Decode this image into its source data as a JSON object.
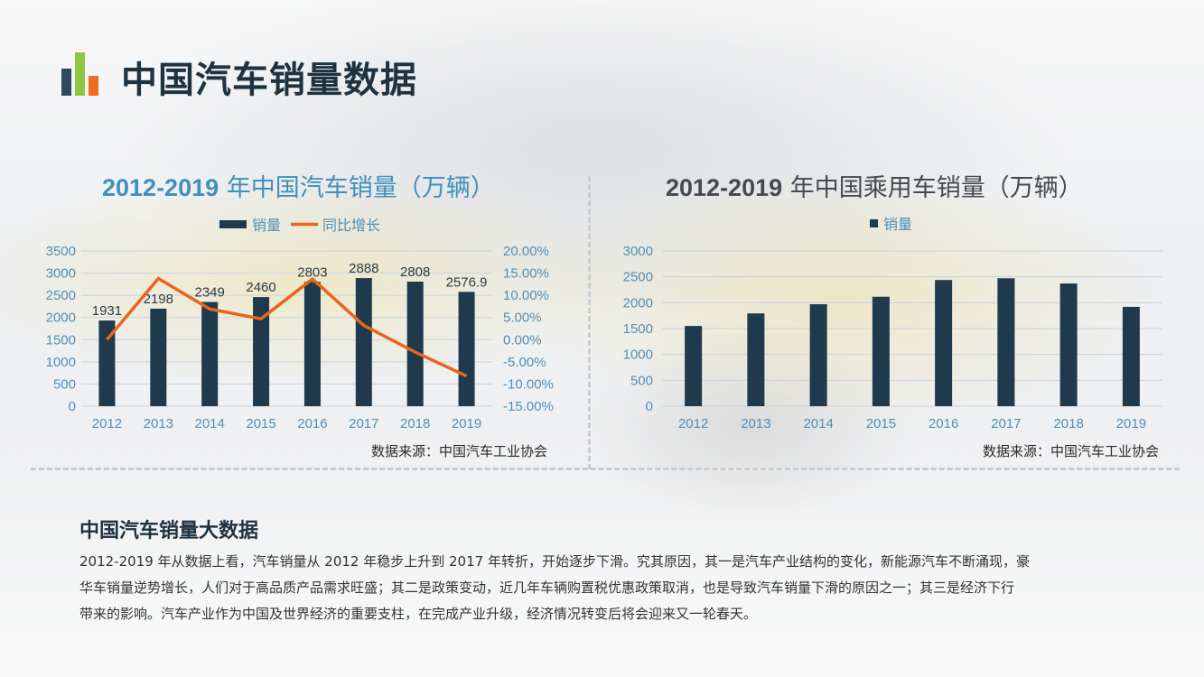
{
  "page": {
    "title": "中国汽车销量数据",
    "accent_colors": [
      "#2b4a5c",
      "#8dc63f",
      "#ef6c21"
    ]
  },
  "chart_data": [
    {
      "type": "bar+line",
      "title_bold": "2012-2019",
      "title_rest": " 年中国汽车销量（万辆）",
      "categories": [
        "2012",
        "2013",
        "2014",
        "2015",
        "2016",
        "2017",
        "2018",
        "2019"
      ],
      "series": [
        {
          "name": "销量",
          "type": "bar",
          "axis": "left",
          "color": "#1e3a4c",
          "values": [
            1931,
            2198,
            2349,
            2460,
            2803,
            2888,
            2808,
            2576.9
          ],
          "labels": [
            "1931",
            "2198",
            "2349",
            "2460",
            "2803",
            "2888",
            "2808",
            "2576.9"
          ]
        },
        {
          "name": "同比增长",
          "type": "line",
          "axis": "right",
          "color": "#e8651c",
          "values": [
            0.0,
            13.8,
            6.9,
            4.7,
            13.7,
            3.2,
            -2.8,
            -8.2
          ]
        }
      ],
      "ylim_left": [
        0,
        3500
      ],
      "yticks_left": [
        0,
        500,
        1000,
        1500,
        2000,
        2500,
        3000,
        3500
      ],
      "ylim_right": [
        -15,
        20
      ],
      "yticks_right": [
        "-15.00%",
        "-10.00%",
        "-5.00%",
        "0.00%",
        "5.00%",
        "10.00%",
        "15.00%",
        "20.00%"
      ],
      "legend": "top-center",
      "source": "数据来源：中国汽车工业协会"
    },
    {
      "type": "bar",
      "title_bold": "2012-2019",
      "title_rest": " 年中国乘用车销量（万辆）",
      "categories": [
        "2012",
        "2013",
        "2014",
        "2015",
        "2016",
        "2017",
        "2018",
        "2019"
      ],
      "series": [
        {
          "name": "销量",
          "type": "bar",
          "color": "#1e3a4c",
          "values": [
            1550,
            1793,
            1970,
            2115,
            2438,
            2472,
            2371,
            1920
          ]
        }
      ],
      "ylim": [
        0,
        3000
      ],
      "yticks": [
        0,
        500,
        1000,
        1500,
        2000,
        2500,
        3000
      ],
      "legend": "top-left",
      "source": "数据来源：中国汽车工业协会"
    }
  ],
  "section": {
    "title": "中国汽车销量大数据",
    "lines": [
      "2012-2019 年从数据上看，汽车销量从 2012 年稳步上升到 2017 年转折，开始逐步下滑。究其原因，其一是汽车产业结构的变化，新能源汽车不断涌现，豪",
      "华车销量逆势增长，人们对于高品质产品需求旺盛；其二是政策变动，近几年车辆购置税优惠政策取消，也是导致汽车销量下滑的原因之一；其三是经济下行",
      "带来的影响。汽车产业作为中国及世界经济的重要支柱，在完成产业升级，经济情况转变后将会迎来又一轮春天。"
    ]
  }
}
